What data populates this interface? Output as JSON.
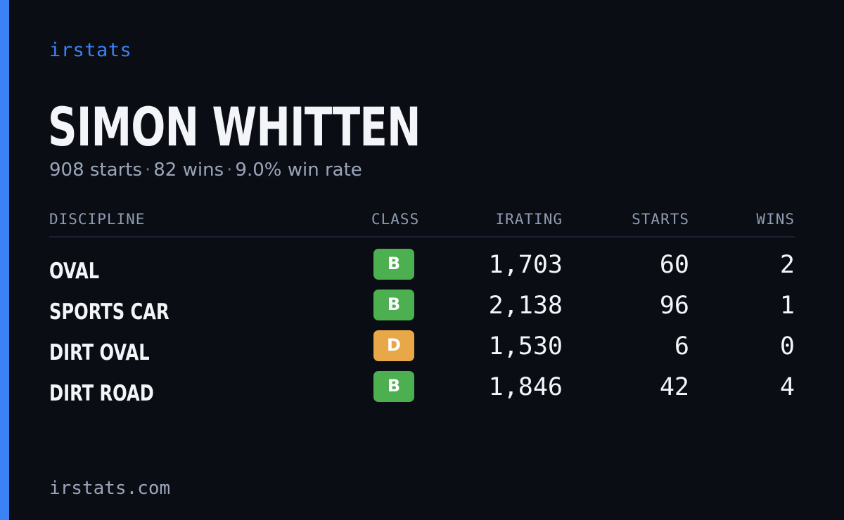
{
  "brand": "irstats",
  "driver": {
    "name": "SIMON WHITTEN",
    "starts_text": "908 starts",
    "wins_text": "82 wins",
    "win_rate_text": "9.0% win rate",
    "separator": "·"
  },
  "table": {
    "headers": {
      "discipline": "DISCIPLINE",
      "class": "CLASS",
      "irating": "IRATING",
      "starts": "STARTS",
      "wins": "WINS"
    },
    "rows": [
      {
        "discipline": "OVAL",
        "class": "B",
        "class_color": "#4caf50",
        "irating": "1,703",
        "starts": "60",
        "wins": "2"
      },
      {
        "discipline": "SPORTS CAR",
        "class": "B",
        "class_color": "#4caf50",
        "irating": "2,138",
        "starts": "96",
        "wins": "1"
      },
      {
        "discipline": "DIRT OVAL",
        "class": "D",
        "class_color": "#e8a847",
        "irating": "1,530",
        "starts": "6",
        "wins": "0"
      },
      {
        "discipline": "DIRT ROAD",
        "class": "B",
        "class_color": "#4caf50",
        "irating": "1,846",
        "starts": "42",
        "wins": "4"
      }
    ]
  },
  "footer": "irstats.com",
  "colors": {
    "background": "#0a0d14",
    "accent": "#3b82f6",
    "class_b": "#4caf50",
    "class_d": "#e8a847"
  }
}
